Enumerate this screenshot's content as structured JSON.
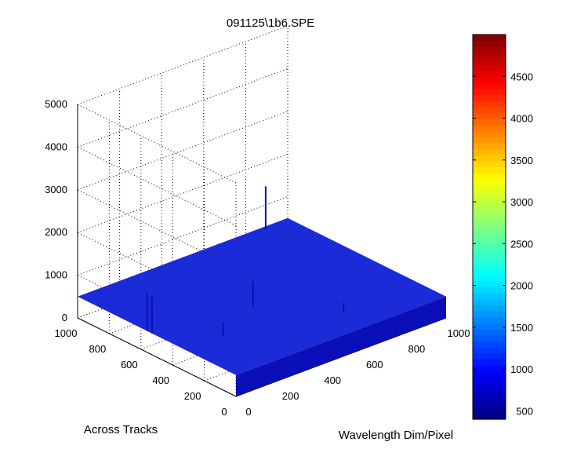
{
  "chart_data": {
    "type": "surface",
    "title": "091125\\1b6.SPE",
    "xlabel": "Wavelength Dim/Pixel",
    "ylabel": "Across Tracks",
    "zlabel": "",
    "xlim": [
      0,
      1000
    ],
    "ylim": [
      0,
      1000
    ],
    "zlim": [
      0,
      5000
    ],
    "x_ticks": [
      "0",
      "200",
      "400",
      "600",
      "800",
      "1000"
    ],
    "y_ticks": [
      "0",
      "200",
      "400",
      "600",
      "800",
      "1000"
    ],
    "z_ticks": [
      "0",
      "1000",
      "2000",
      "3000",
      "4000",
      "5000"
    ],
    "surface_level": 500,
    "spikes": [
      {
        "x": 0,
        "y": 560,
        "z": 1400
      },
      {
        "x": 0,
        "y": 530,
        "z": 1350
      },
      {
        "x": 880,
        "y": 980,
        "z": 1500
      },
      {
        "x": 420,
        "y": 450,
        "z": 1100
      },
      {
        "x": 180,
        "y": 320,
        "z": 800
      },
      {
        "x": 640,
        "y": 170,
        "z": 700
      }
    ],
    "grid": true,
    "colorbar": {
      "colormap": "jet",
      "min": 400,
      "max": 5000,
      "ticks": [
        "500",
        "1000",
        "1500",
        "2000",
        "2500",
        "3000",
        "3500",
        "4000",
        "4500"
      ]
    }
  }
}
